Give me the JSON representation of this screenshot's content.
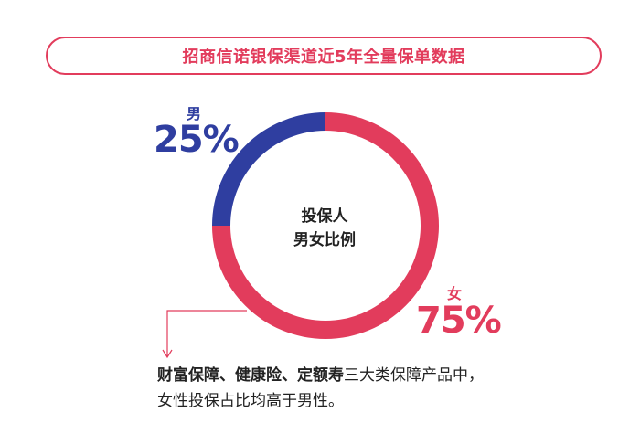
{
  "title": "招商信诺银保渠道近5年全量保单数据",
  "colors": {
    "accent": "#e23c5c",
    "male": "#2f3ea0",
    "female": "#e23c5c",
    "text": "#222222"
  },
  "chart_data": {
    "type": "pie",
    "title": "投保人",
    "subtitle": "男女比例",
    "categories": [
      "男",
      "女"
    ],
    "values": [
      25,
      75
    ],
    "value_labels": [
      "25%",
      "75%"
    ]
  },
  "note": {
    "bold": "财富保障、健康险、定额寿",
    "line1_rest": "三大类保障产品中，",
    "line2": "女性投保占比均高于男性。"
  }
}
